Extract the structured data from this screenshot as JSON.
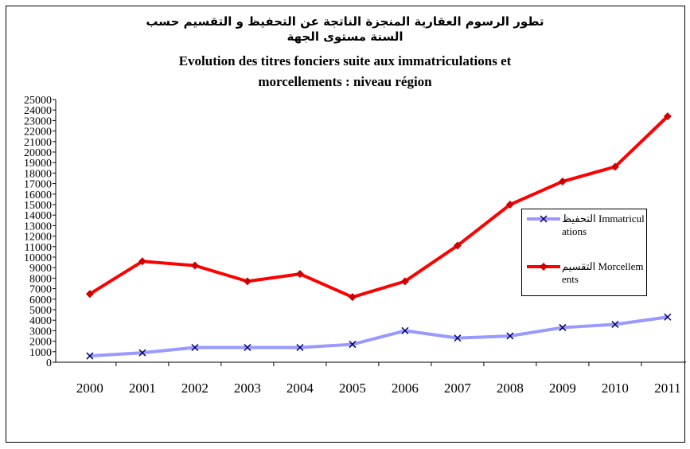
{
  "chart_data": {
    "type": "line",
    "title": "تطور الرسوم العقارية المنجزة الناتجة عن التحفيظ و التقسيم حسب السنة مستوى الجهة",
    "subtitle": "Evolution des titres fonciers suite aux immatriculations et morcellements : niveau région",
    "categories": [
      "2000",
      "2001",
      "2002",
      "2003",
      "2004",
      "2005",
      "2006",
      "2007",
      "2008",
      "2009",
      "2010",
      "2011"
    ],
    "series": [
      {
        "name": "التحفيظ Immatriculations",
        "color": "#9999ff",
        "marker_color": "#000066",
        "marker": "x",
        "values": [
          600,
          900,
          1400,
          1400,
          1400,
          1700,
          3000,
          2300,
          2500,
          3300,
          3600,
          4300
        ]
      },
      {
        "name": "التقسيم Morcellements",
        "color": "#ff0000",
        "marker_color": "#cc0000",
        "marker": "diamond",
        "values": [
          6500,
          9600,
          9200,
          7700,
          8400,
          6200,
          7700,
          11100,
          15000,
          17200,
          18600,
          23400
        ]
      }
    ],
    "ylim": [
      0,
      25000
    ],
    "yticks": [
      0,
      1000,
      2000,
      3000,
      4000,
      5000,
      6000,
      7000,
      8000,
      9000,
      10000,
      11000,
      12000,
      13000,
      14000,
      15000,
      16000,
      17000,
      18000,
      19000,
      20000,
      21000,
      22000,
      23000,
      24000,
      25000
    ],
    "grid": false,
    "legend": "right"
  }
}
